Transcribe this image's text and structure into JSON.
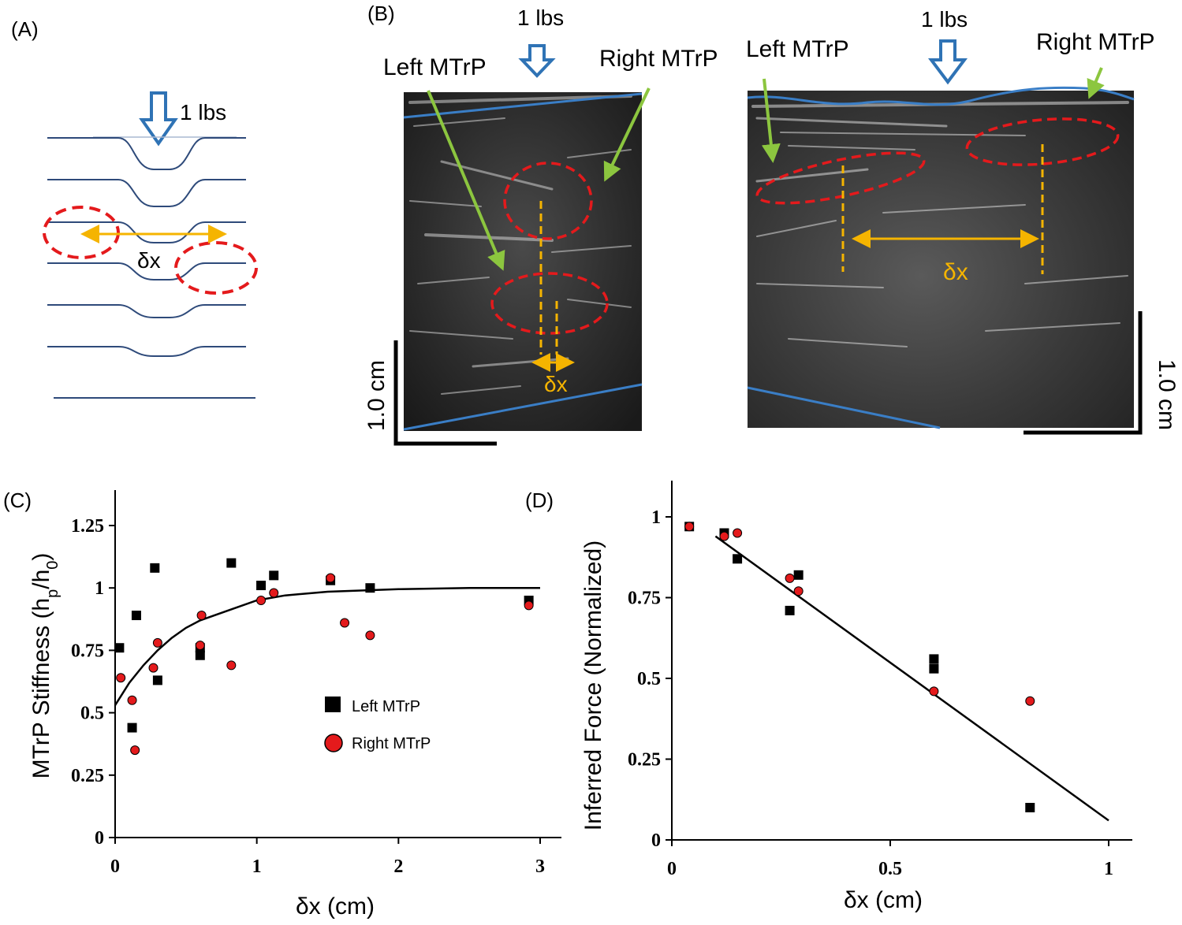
{
  "panel_a": {
    "label": "(A)",
    "force": "1 lbs",
    "dx": "δx"
  },
  "panel_b": {
    "label": "(B)",
    "left_image": {
      "force": "1 lbs",
      "left_mtrp": "Left MTrP",
      "right_mtrp": "Right MTrP",
      "dx": "δx",
      "scale": "1.0 cm"
    },
    "right_image": {
      "force": "1 lbs",
      "left_mtrp": "Left MTrP",
      "right_mtrp": "Right MTrP",
      "dx": "δx",
      "scale": "1.0 cm"
    }
  },
  "colors": {
    "blue_line": "#3a7ec6",
    "red_ellipse": "#e41a1c",
    "yellow": "#f5b400",
    "green_arrow": "#8cc63f",
    "dark_line": "#2e4a7a"
  },
  "chart_data": [
    {
      "panel": "(C)",
      "type": "scatter",
      "title": "",
      "xlabel": "δx (cm)",
      "ylabel": "MTrP Stiffness (h_p/h_0)",
      "ylabel_main": "MTrP Stiffness (h",
      "ylabel_sub1": "p",
      "ylabel_mid": "/h",
      "ylabel_sub2": "0",
      "ylabel_end": ")",
      "xlim": [
        0,
        3.1
      ],
      "ylim": [
        0,
        1.4
      ],
      "xticks": [
        0,
        1,
        2,
        3
      ],
      "xtick_labels": [
        "0",
        "1",
        "2",
        "3"
      ],
      "yticks": [
        0,
        0.25,
        0.5,
        0.75,
        1,
        1.25
      ],
      "ytick_labels": [
        "0",
        "0.25",
        "0.5",
        "0.75",
        "1",
        "1.25"
      ],
      "legend": {
        "position": "center-right",
        "entries": [
          "Left MTrP",
          "Right MTrP"
        ]
      },
      "series": [
        {
          "name": "Left MTrP",
          "marker": "square",
          "color": "#000000",
          "points": [
            [
              0.03,
              0.76
            ],
            [
              0.12,
              0.44
            ],
            [
              0.15,
              0.89
            ],
            [
              0.28,
              1.08
            ],
            [
              0.3,
              0.63
            ],
            [
              0.6,
              0.73
            ],
            [
              0.6,
              0.76
            ],
            [
              0.82,
              1.1
            ],
            [
              1.03,
              1.01
            ],
            [
              1.12,
              1.05
            ],
            [
              1.52,
              1.03
            ],
            [
              1.8,
              1.0
            ],
            [
              2.92,
              0.95
            ]
          ]
        },
        {
          "name": "Right MTrP",
          "marker": "circle",
          "color": "#e41a1c",
          "points": [
            [
              0.04,
              0.64
            ],
            [
              0.12,
              0.55
            ],
            [
              0.14,
              0.35
            ],
            [
              0.27,
              0.68
            ],
            [
              0.3,
              0.78
            ],
            [
              0.61,
              0.89
            ],
            [
              0.6,
              0.77
            ],
            [
              0.82,
              0.69
            ],
            [
              1.03,
              0.95
            ],
            [
              1.12,
              0.98
            ],
            [
              1.52,
              1.04
            ],
            [
              1.62,
              0.86
            ],
            [
              1.8,
              0.81
            ],
            [
              2.92,
              0.93
            ]
          ]
        },
        {
          "name": "fit",
          "type": "line",
          "color": "#000000",
          "points": [
            [
              0,
              0.53
            ],
            [
              0.1,
              0.62
            ],
            [
              0.2,
              0.69
            ],
            [
              0.3,
              0.75
            ],
            [
              0.4,
              0.8
            ],
            [
              0.5,
              0.84
            ],
            [
              0.6,
              0.87
            ],
            [
              0.8,
              0.91
            ],
            [
              1.0,
              0.95
            ],
            [
              1.2,
              0.97
            ],
            [
              1.5,
              0.985
            ],
            [
              2.0,
              0.995
            ],
            [
              2.5,
              1.0
            ],
            [
              3.0,
              1.0
            ]
          ]
        }
      ]
    },
    {
      "panel": "(D)",
      "type": "scatter",
      "title": "",
      "xlabel": "δx (cm)",
      "ylabel": "Inferred Force (Normalized)",
      "xlim": [
        0,
        1.05
      ],
      "ylim": [
        0,
        1.12
      ],
      "xticks": [
        0,
        0.5,
        1
      ],
      "xtick_labels": [
        "0",
        "0.5",
        "1"
      ],
      "yticks": [
        0,
        0.25,
        0.5,
        0.75,
        1
      ],
      "ytick_labels": [
        "0",
        "0.25",
        "0.5",
        "0.75",
        "1"
      ],
      "series": [
        {
          "name": "Left MTrP",
          "marker": "square",
          "color": "#000000",
          "points": [
            [
              0.04,
              0.97
            ],
            [
              0.12,
              0.95
            ],
            [
              0.15,
              0.87
            ],
            [
              0.27,
              0.71
            ],
            [
              0.29,
              0.82
            ],
            [
              0.6,
              0.56
            ],
            [
              0.6,
              0.53
            ],
            [
              0.82,
              0.1
            ]
          ]
        },
        {
          "name": "Right MTrP",
          "marker": "circle",
          "color": "#e41a1c",
          "points": [
            [
              0.04,
              0.97
            ],
            [
              0.12,
              0.94
            ],
            [
              0.15,
              0.95
            ],
            [
              0.27,
              0.81
            ],
            [
              0.29,
              0.77
            ],
            [
              0.6,
              0.46
            ],
            [
              0.82,
              0.43
            ]
          ]
        },
        {
          "name": "fit",
          "type": "line",
          "color": "#000000",
          "points": [
            [
              0.1,
              0.94
            ],
            [
              1.0,
              0.06
            ]
          ]
        }
      ]
    }
  ]
}
